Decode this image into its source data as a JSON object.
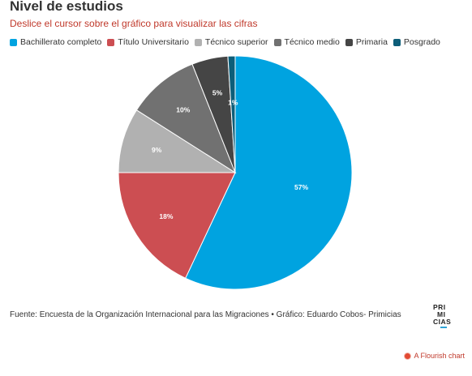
{
  "header": {
    "title": "Nivel de estudios",
    "subtitle": "Deslice el cursor sobre el gráfico para visualizar las cifras"
  },
  "chart_data": {
    "type": "pie",
    "title": "Nivel de estudios",
    "subtitle": "Deslice el cursor sobre el gráfico para visualizar las cifras",
    "legend_position": "top-left",
    "slices": [
      {
        "name": "Bachillerato completo",
        "value": 57,
        "label": "57%",
        "color": "#00a3e0"
      },
      {
        "name": "Título Universitario",
        "value": 18,
        "label": "18%",
        "color": "#cc4e52"
      },
      {
        "name": "Técnico superior",
        "value": 9,
        "label": "9%",
        "color": "#b1b1b1"
      },
      {
        "name": "Técnico medio",
        "value": 10,
        "label": "10%",
        "color": "#717171"
      },
      {
        "name": "Primaria",
        "value": 5,
        "label": "5%",
        "color": "#454545"
      },
      {
        "name": "Posgrado",
        "value": 1,
        "label": "1%",
        "color": "#0d5e79"
      }
    ]
  },
  "footer": {
    "source": "Fuente: Encuesta de la Organización Internacional para las Migraciones • Gráfico: Eduardo Cobos- Primicias",
    "logo_lines": [
      "PRI",
      "MI",
      "CIAS"
    ],
    "credit": "A Flourish chart"
  }
}
